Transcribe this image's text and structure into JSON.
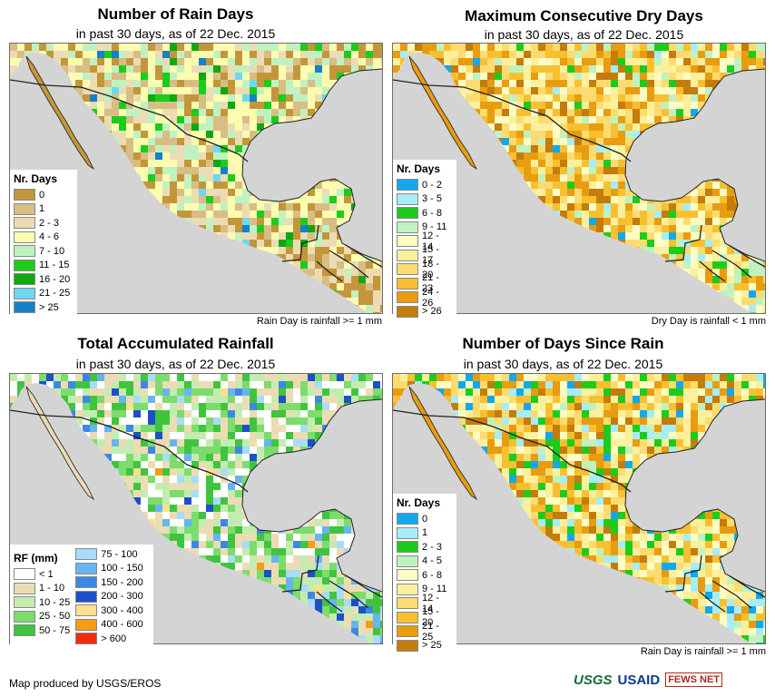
{
  "panels": [
    {
      "id": "rain-days",
      "title": "Number of Rain Days",
      "subtitle": "in past 30 days, as of 22 Dec. 2015",
      "legend_title": "Nr. Days",
      "note": "Rain Day is rainfall >= 1 mm",
      "legend": [
        {
          "label": "0",
          "color": "#c4963a"
        },
        {
          "label": "1",
          "color": "#d8bd84"
        },
        {
          "label": "2 - 3",
          "color": "#ecdcb4"
        },
        {
          "label": "4 - 6",
          "color": "#fcfcb0"
        },
        {
          "label": "7 - 10",
          "color": "#bff2c0"
        },
        {
          "label": "11 - 15",
          "color": "#1ccc1c"
        },
        {
          "label": "16 - 20",
          "color": "#0fa80f"
        },
        {
          "label": "21 - 25",
          "color": "#6fd8f0"
        },
        {
          "label": "> 25",
          "color": "#1680c8"
        }
      ]
    },
    {
      "id": "dry-days",
      "title": "Maximum Consecutive Dry Days",
      "subtitle": "in past 30 days, as of 22 Dec. 2015",
      "legend_title": "Nr. Days",
      "note": "Dry Day is rainfall < 1 mm",
      "legend": [
        {
          "label": "0 - 2",
          "color": "#12a8ee"
        },
        {
          "label": "3 - 5",
          "color": "#a8ecf8"
        },
        {
          "label": "6 - 8",
          "color": "#1ccc1c"
        },
        {
          "label": "9 - 11",
          "color": "#bff2c0"
        },
        {
          "label": "12 - 14",
          "color": "#fcfcc4"
        },
        {
          "label": "15 - 17",
          "color": "#fcf09c"
        },
        {
          "label": "18 - 20",
          "color": "#fcdc70"
        },
        {
          "label": "21 - 23",
          "color": "#f8c030"
        },
        {
          "label": "24 - 26",
          "color": "#e89c10"
        },
        {
          "label": "> 26",
          "color": "#c47c0c"
        }
      ]
    },
    {
      "id": "rainfall",
      "title": "Total Accumulated Rainfall",
      "subtitle": "in past 30 days, as of 22 Dec. 2015",
      "legend_title": "RF (mm)",
      "note": "",
      "legend": [
        {
          "label": "< 1",
          "color": "#ffffff"
        },
        {
          "label": "1 - 10",
          "color": "#ecdcb4"
        },
        {
          "label": "10 - 25",
          "color": "#c4ecb0"
        },
        {
          "label": "25 - 50",
          "color": "#7cdc6c"
        },
        {
          "label": "50 - 75",
          "color": "#40c440"
        },
        {
          "label": "75 - 100",
          "color": "#a8dcf8"
        },
        {
          "label": "100 - 150",
          "color": "#68b4f0"
        },
        {
          "label": "150 - 200",
          "color": "#3c88e4"
        },
        {
          "label": "200 - 300",
          "color": "#1c50c8"
        },
        {
          "label": "300 - 400",
          "color": "#fce08c"
        },
        {
          "label": "400 - 600",
          "color": "#f89c14"
        },
        {
          "label": "> 600",
          "color": "#f02c0c"
        }
      ]
    },
    {
      "id": "days-since-rain",
      "title": "Number of Days Since Rain",
      "subtitle": "in past 30 days, as of 22 Dec. 2015",
      "legend_title": "Nr. Days",
      "note": "Rain Day is rainfall >= 1 mm",
      "legend": [
        {
          "label": "0",
          "color": "#12a8ee"
        },
        {
          "label": "1",
          "color": "#a8ecf8"
        },
        {
          "label": "2 - 3",
          "color": "#1ccc1c"
        },
        {
          "label": "4 - 5",
          "color": "#bff2c0"
        },
        {
          "label": "6 - 8",
          "color": "#fcfcc4"
        },
        {
          "label": "9 - 11",
          "color": "#fcf09c"
        },
        {
          "label": "12 - 14",
          "color": "#fcdc70"
        },
        {
          "label": "15 - 20",
          "color": "#f8c030"
        },
        {
          "label": "21 - 25",
          "color": "#e89c10"
        },
        {
          "label": "> 25",
          "color": "#c47c0c"
        }
      ]
    }
  ],
  "footer": {
    "credit": "Map produced by USGS/EROS",
    "logos": [
      "USGS",
      "USAID",
      "FEWS NET"
    ]
  },
  "colors": {
    "ocean": "#d4d4d4",
    "border": "#222222"
  }
}
